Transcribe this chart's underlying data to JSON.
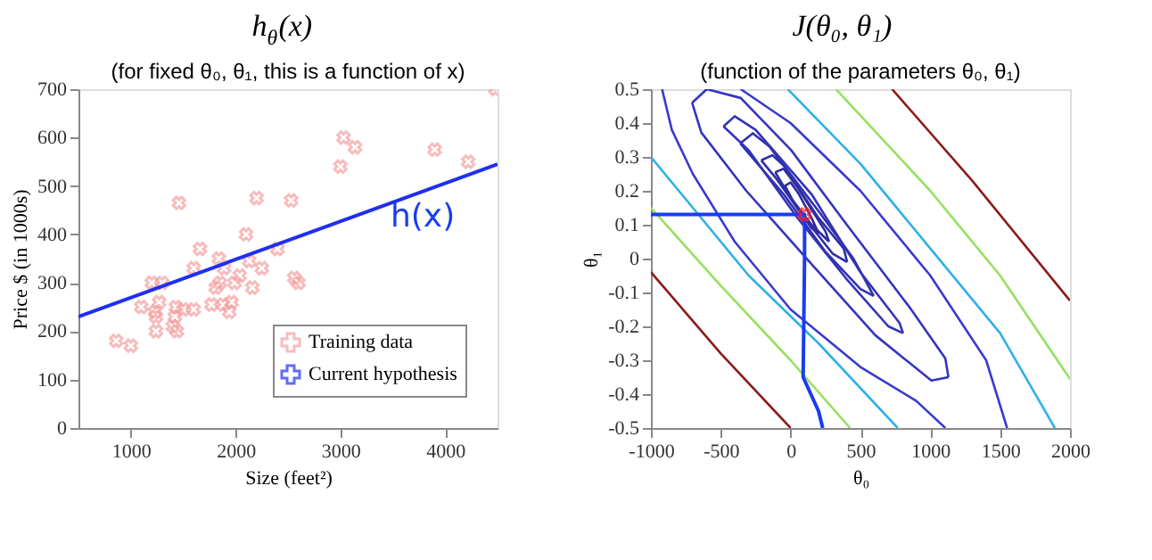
{
  "chart_data": [
    {
      "type": "scatter",
      "title": "h$_{θ}$(x)",
      "subtitle": "(for fixed θ₀, θ₁, this is a function of x)",
      "xlabel": "Size (feet²)",
      "ylabel": "Price $ (in 1000s)",
      "xlim": [
        500,
        4500
      ],
      "xticks": [
        1000,
        2000,
        3000,
        4000
      ],
      "ylim": [
        0,
        700
      ],
      "yticks": [
        0,
        100,
        200,
        300,
        400,
        500,
        600,
        700
      ],
      "grid": false,
      "legend": "bottom right",
      "annotations": [
        "h(x)"
      ],
      "series": [
        {
          "name": "Training data",
          "type": "scatter",
          "marker": "cross",
          "color": "#f4a0a0",
          "x": [
            860,
            1000,
            1100,
            1200,
            1230,
            1240,
            1240,
            1270,
            1300,
            1400,
            1420,
            1430,
            1440,
            1460,
            1500,
            1600,
            1600,
            1660,
            1770,
            1810,
            1840,
            1850,
            1880,
            1890,
            1940,
            1960,
            1990,
            2040,
            2100,
            2130,
            2160,
            2200,
            2250,
            2400,
            2530,
            2560,
            2600,
            3000,
            3030,
            3140,
            3900,
            4220,
            4480
          ],
          "values": [
            180,
            170,
            250,
            300,
            240,
            230,
            200,
            260,
            300,
            210,
            230,
            250,
            200,
            465,
            245,
            330,
            245,
            370,
            255,
            290,
            350,
            300,
            255,
            330,
            240,
            260,
            300,
            315,
            400,
            345,
            290,
            475,
            330,
            370,
            470,
            310,
            300,
            540,
            600,
            580,
            575,
            550,
            700
          ]
        },
        {
          "name": "Current hypothesis",
          "type": "line",
          "color": "#1f2ff0",
          "x": [
            500,
            4500
          ],
          "values": [
            230,
            545
          ]
        }
      ]
    },
    {
      "type": "line",
      "title": "J(θ₀, θ₁)",
      "subtitle": "(function of the parameters θ₀, θ₁)",
      "xlabel": "θ₀",
      "ylabel": "θ₁",
      "xlim": [
        -1000,
        2000
      ],
      "xticks": [
        -1000,
        -500,
        0,
        500,
        1000,
        1500,
        2000
      ],
      "ylim": [
        -0.5,
        0.5
      ],
      "yticks": [
        -0.5,
        -0.4,
        -0.3,
        -0.2,
        -0.1,
        0,
        0.1,
        0.2,
        0.3,
        0.4,
        0.5
      ],
      "grid": false,
      "series": [
        {
          "color": "#2a2a9c",
          "x": [
            -40,
            0,
            60,
            150,
            200
          ],
          "values": [
            0.215,
            0.225,
            0.19,
            0.12,
            0.075
          ]
        },
        {
          "color": "#2a2a9c",
          "x": [
            -40,
            30,
            150,
            200
          ],
          "values": [
            0.215,
            0.16,
            0.09,
            0.075
          ]
        },
        {
          "color": "#2c2ca2",
          "x": [
            -110,
            -50,
            50,
            250,
            275
          ],
          "values": [
            0.255,
            0.265,
            0.21,
            0.08,
            0.05
          ]
        },
        {
          "color": "#2c2ca2",
          "x": [
            -110,
            0,
            150,
            275
          ],
          "values": [
            0.255,
            0.18,
            0.1,
            0.05
          ]
        },
        {
          "color": "#2e2ea8",
          "x": [
            -210,
            -130,
            -50,
            200,
            380,
            405
          ],
          "values": [
            0.29,
            0.305,
            0.275,
            0.12,
            0.03,
            -0.01
          ]
        },
        {
          "color": "#2e2ea8",
          "x": [
            -210,
            -100,
            80,
            300,
            405
          ],
          "values": [
            0.29,
            0.235,
            0.13,
            0.015,
            -0.01
          ]
        },
        {
          "color": "#3030b0",
          "x": [
            -360,
            -270,
            -150,
            200,
            450,
            595
          ],
          "values": [
            0.34,
            0.37,
            0.33,
            0.14,
            0.0,
            -0.11
          ]
        },
        {
          "color": "#3030b0",
          "x": [
            -360,
            -50,
            250,
            500,
            595
          ],
          "values": [
            0.34,
            0.19,
            0.02,
            -0.09,
            -0.11
          ]
        },
        {
          "color": "#3232b8",
          "x": [
            -480,
            -400,
            -250,
            150,
            500,
            780,
            805
          ],
          "values": [
            0.39,
            0.42,
            0.38,
            0.19,
            -0.04,
            -0.19,
            -0.22
          ]
        },
        {
          "color": "#3232b8",
          "x": [
            -480,
            -300,
            50,
            400,
            700,
            805
          ],
          "values": [
            0.39,
            0.32,
            0.12,
            -0.06,
            -0.2,
            -0.22
          ]
        },
        {
          "color": "#3434c0",
          "x": [
            -705,
            -600,
            -357,
            4,
            406,
            847,
            1108,
            1130
          ],
          "values": [
            0.46,
            0.5,
            0.474,
            0.32,
            0.098,
            -0.141,
            -0.295,
            -0.35
          ]
        },
        {
          "color": "#3434c0",
          "x": [
            -705,
            -639,
            -317,
            124,
            606,
            1008,
            1130
          ],
          "values": [
            0.46,
            0.372,
            0.2,
            -0.004,
            -0.226,
            -0.36,
            -0.35
          ]
        },
        {
          "color": "#3a3ad0",
          "x": [
            -920,
            -850,
            -700,
            -400,
            0,
            500,
            900,
            1108
          ],
          "values": [
            0.5,
            0.38,
            0.25,
            0.05,
            -0.15,
            -0.32,
            -0.42,
            -0.5
          ]
        },
        {
          "color": "#3a3ad0",
          "x": [
            -357,
            0,
            500,
            1000,
            1400,
            1550
          ],
          "values": [
            0.5,
            0.4,
            0.2,
            -0.05,
            -0.3,
            -0.5
          ]
        },
        {
          "color": "#30b0e8",
          "x": [
            -1000,
            -700,
            -300,
            200,
            767
          ],
          "values": [
            0.3,
            0.15,
            -0.05,
            -0.25,
            -0.5
          ]
        },
        {
          "color": "#30b0e8",
          "x": [
            -20,
            500,
            1000,
            1500,
            1892
          ],
          "values": [
            0.5,
            0.28,
            0.03,
            -0.22,
            -0.5
          ]
        },
        {
          "color": "#98e060",
          "x": [
            -1000,
            -500,
            0,
            426
          ],
          "values": [
            0.15,
            -0.08,
            -0.3,
            -0.5
          ]
        },
        {
          "color": "#98e060",
          "x": [
            325,
            1000,
            1500,
            2000
          ],
          "values": [
            0.5,
            0.2,
            -0.05,
            -0.355
          ]
        },
        {
          "color": "#8b1a1a",
          "x": [
            -1000,
            -500,
            0
          ],
          "values": [
            -0.04,
            -0.28,
            -0.5
          ]
        },
        {
          "color": "#8b1a1a",
          "x": [
            727,
            1300,
            2000
          ],
          "values": [
            0.5,
            0.23,
            -0.124
          ]
        },
        {
          "color": "#1a3cf0",
          "x": [
            -1000,
            100,
            100,
            90,
            200,
            230
          ],
          "values": [
            0.13,
            0.13,
            0.0,
            -0.35,
            -0.45,
            -0.5
          ]
        },
        {
          "type": "scatter",
          "marker": "cross",
          "color": "#ff2020",
          "x": [
            100
          ],
          "values": [
            0.13
          ]
        }
      ]
    }
  ]
}
